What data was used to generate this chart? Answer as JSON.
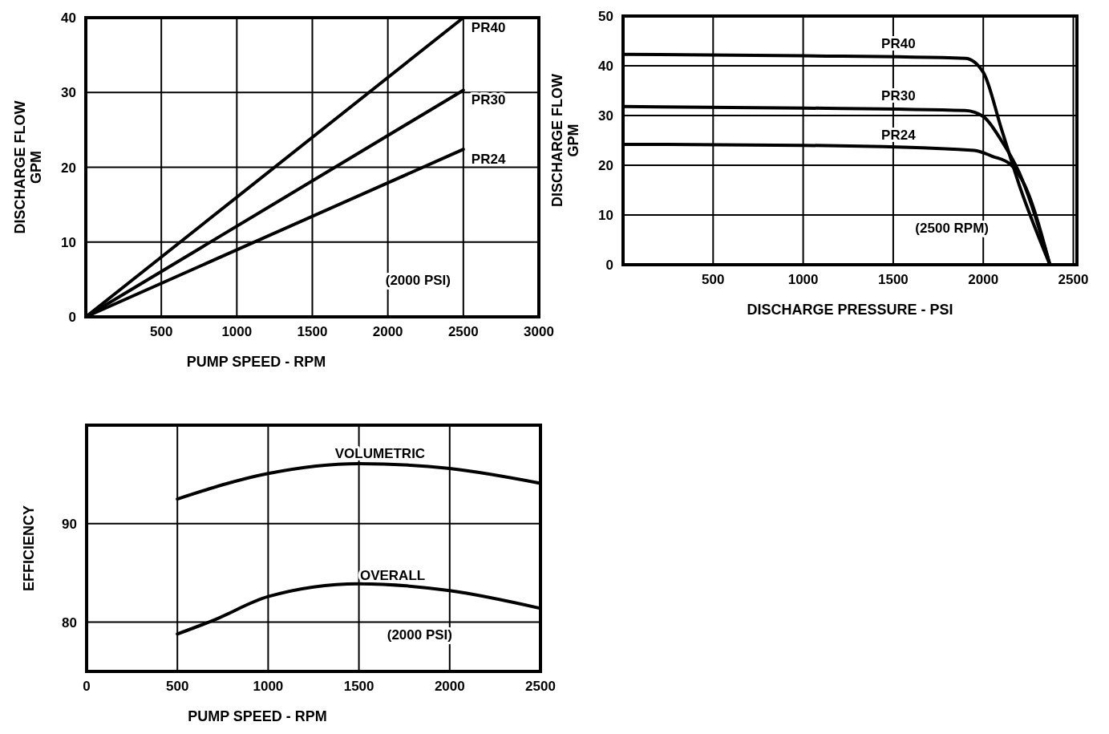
{
  "chart_data": [
    {
      "type": "line",
      "xlabel": "PUMP SPEED - RPM",
      "ylabel": "DISCHARGE FLOW\nGPM",
      "xlim": [
        0,
        3000
      ],
      "ylim": [
        0,
        40
      ],
      "xticks": [
        500,
        1000,
        1500,
        2000,
        2500,
        3000
      ],
      "yticks": [
        0,
        10,
        20,
        30,
        40
      ],
      "grid": true,
      "color": "#000000",
      "annotations": [
        "(2000 PSI)"
      ],
      "series": [
        {
          "name": "PR40",
          "x": [
            0,
            2500
          ],
          "values": [
            0,
            40
          ]
        },
        {
          "name": "PR30",
          "x": [
            0,
            2500
          ],
          "values": [
            0,
            30.3
          ]
        },
        {
          "name": "PR24",
          "x": [
            0,
            2500
          ],
          "values": [
            0,
            22.4
          ]
        }
      ]
    },
    {
      "type": "line",
      "xlabel": "DISCHARGE PRESSURE - PSI",
      "ylabel": "DISCHARGE FLOW\nGPM",
      "xlim": [
        0,
        2520
      ],
      "ylim": [
        0,
        50
      ],
      "xticks": [
        500,
        1000,
        1500,
        2000,
        2500
      ],
      "yticks": [
        0,
        10,
        20,
        30,
        40,
        50
      ],
      "grid": true,
      "color": "#000000",
      "annotations": [
        "(2500 RPM)"
      ],
      "series": [
        {
          "name": "PR40",
          "x": [
            0,
            1000,
            1900,
            2000,
            2100,
            2200,
            2370
          ],
          "values": [
            42.3,
            42,
            41.5,
            38.7,
            27.4,
            16,
            0
          ]
        },
        {
          "name": "PR30",
          "x": [
            0,
            1000,
            1900,
            2000,
            2100,
            2200,
            2370
          ],
          "values": [
            31.8,
            31.5,
            31,
            29.8,
            25,
            18.5,
            0
          ]
        },
        {
          "name": "PR24",
          "x": [
            0,
            1000,
            1950,
            2050,
            2150,
            2230,
            2370
          ],
          "values": [
            24.2,
            24,
            23,
            21.8,
            20.2,
            16,
            0
          ]
        }
      ]
    },
    {
      "type": "line",
      "xlabel": "PUMP SPEED - RPM",
      "ylabel": "EFFICIENCY",
      "xlim": [
        0,
        2500
      ],
      "ylim": [
        75,
        100
      ],
      "xticks": [
        0,
        500,
        1000,
        1500,
        2000,
        2500
      ],
      "yticks": [
        80,
        90
      ],
      "grid": true,
      "color": "#000000",
      "annotations": [
        "(2000 PSI)"
      ],
      "series": [
        {
          "name": "VOLUMETRIC",
          "x": [
            500,
            1000,
            1500,
            2000,
            2500
          ],
          "values": [
            92.5,
            95.1,
            96.1,
            95.6,
            94.1
          ]
        },
        {
          "name": "OVERALL",
          "x": [
            500,
            700,
            1000,
            1500,
            2000,
            2500
          ],
          "values": [
            78.8,
            80.2,
            82.6,
            83.9,
            83.2,
            81.4
          ]
        }
      ]
    }
  ]
}
